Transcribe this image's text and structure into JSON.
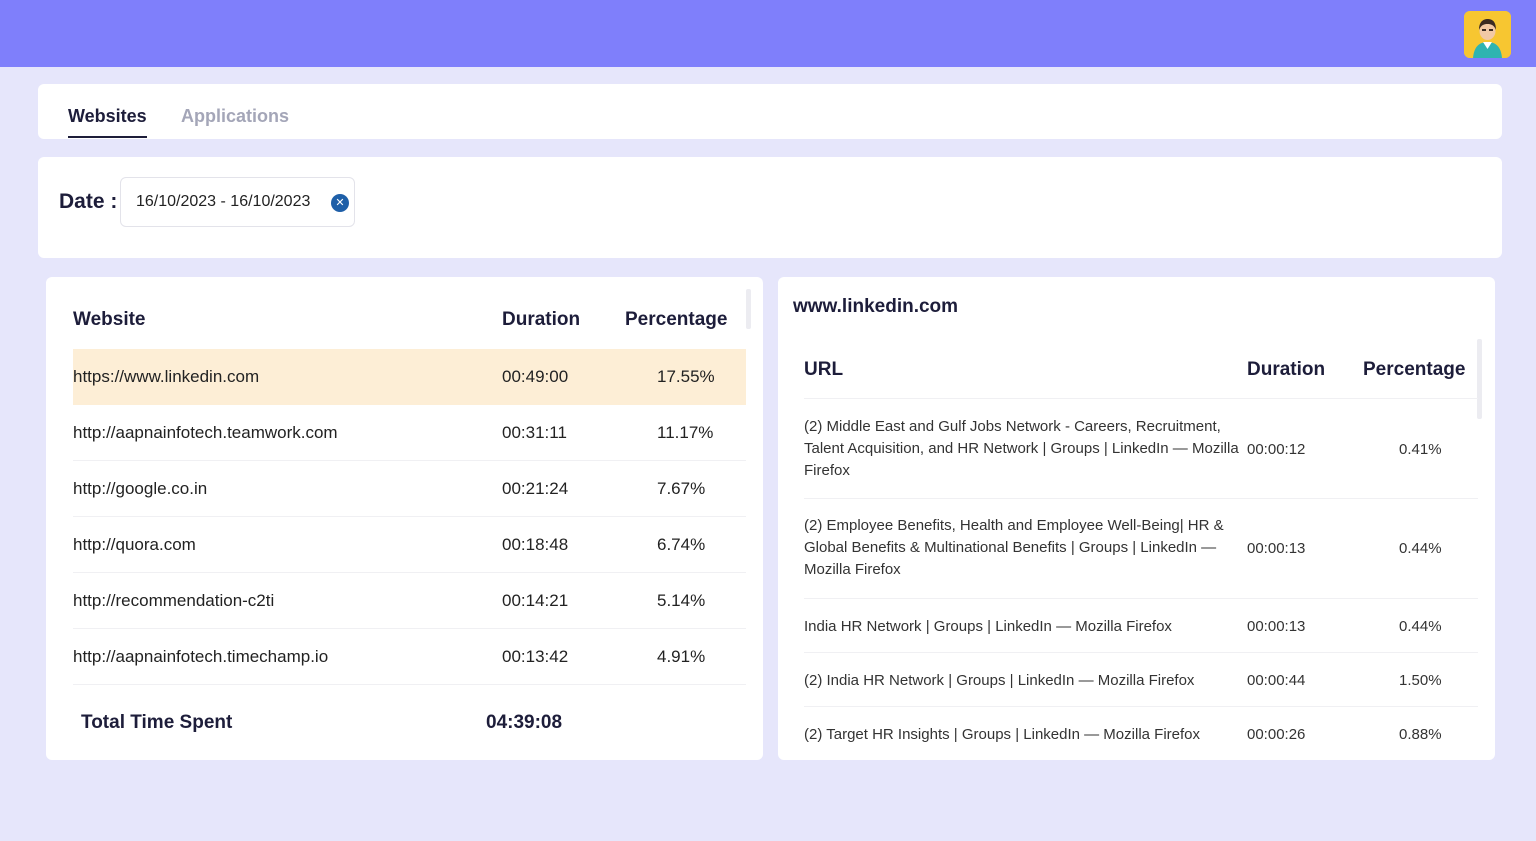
{
  "header": {
    "avatar_icon": "user-avatar-icon",
    "brand_color": "#7f7ffb"
  },
  "tabs": [
    {
      "label": "Websites",
      "active": true
    },
    {
      "label": "Applications",
      "active": false
    }
  ],
  "filter": {
    "date_label": "Date :",
    "date_value": "16/10/2023 - 16/10/2023",
    "clear_icon": "close-icon"
  },
  "websites_table": {
    "columns": [
      "Website",
      "Duration",
      "Percentage"
    ],
    "rows": [
      {
        "website": "https://www.linkedin.com",
        "duration": "00:49:00",
        "percentage": "17.55%",
        "selected": true
      },
      {
        "website": "http://aapnainfotech.teamwork.com",
        "duration": "00:31:11",
        "percentage": "11.17%"
      },
      {
        "website": "http://google.co.in",
        "duration": "00:21:24",
        "percentage": "7.67%"
      },
      {
        "website": "http://quora.com",
        "duration": "00:18:48",
        "percentage": "6.74%"
      },
      {
        "website": "http://recommendation-c2ti",
        "duration": "00:14:21",
        "percentage": "5.14%"
      },
      {
        "website": "http://aapnainfotech.timechamp.io",
        "duration": "00:13:42",
        "percentage": "4.91%"
      }
    ],
    "total_label": "Total Time Spent",
    "total_value": "04:39:08",
    "highlight_color": "#fdeed6"
  },
  "detail": {
    "title": "www.linkedin.com",
    "columns": [
      "URL",
      "Duration",
      "Percentage"
    ],
    "rows": [
      {
        "lines": [
          "(2) Middle East and Gulf Jobs Network - Careers, Recruitment,",
          "Talent Acquisition, and HR Network | Groups | LinkedIn — Mozilla",
          "Firefox"
        ],
        "duration": "00:00:12",
        "percentage": "0.41%"
      },
      {
        "lines": [
          "(2) Employee Benefits, Health and Employee Well-Being| HR &",
          "Global Benefits & Multinational Benefits | Groups | LinkedIn —",
          "Mozilla Firefox"
        ],
        "duration": "00:00:13",
        "percentage": "0.44%"
      },
      {
        "lines": [
          "India HR Network | Groups | LinkedIn — Mozilla Firefox"
        ],
        "duration": "00:00:13",
        "percentage": "0.44%"
      },
      {
        "lines": [
          "(2) India HR Network | Groups | LinkedIn — Mozilla Firefox"
        ],
        "duration": "00:00:44",
        "percentage": "1.50%"
      },
      {
        "lines": [
          "(2) Target HR Insights | Groups | LinkedIn — Mozilla Firefox"
        ],
        "duration": "00:00:26",
        "percentage": "0.88%"
      }
    ]
  }
}
